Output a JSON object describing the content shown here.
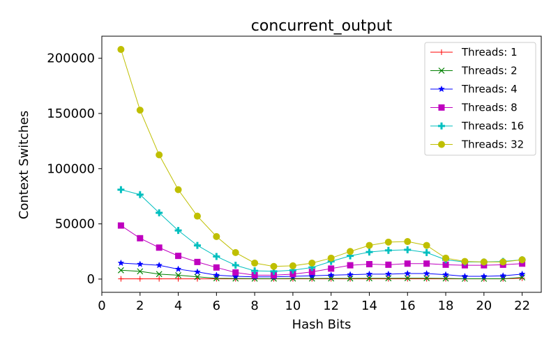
{
  "chart_data": {
    "type": "line",
    "title": "concurrent_output",
    "xlabel": "Hash Bits",
    "ylabel": "Context Switches",
    "xlim": [
      0,
      23
    ],
    "ylim": [
      -12000,
      220000
    ],
    "xticks": [
      0,
      2,
      4,
      6,
      8,
      10,
      12,
      14,
      16,
      18,
      20,
      22
    ],
    "yticks": [
      0,
      50000,
      100000,
      150000,
      200000
    ],
    "legend_position": "top-right",
    "grid": false,
    "x": [
      1,
      2,
      3,
      4,
      5,
      6,
      7,
      8,
      9,
      10,
      11,
      12,
      13,
      14,
      15,
      16,
      17,
      18,
      19,
      20,
      21,
      22
    ],
    "series": [
      {
        "name": "Threads: 1",
        "color": "#ff0000",
        "marker": "plus-thin",
        "values": [
          200,
          200,
          200,
          200,
          200,
          200,
          200,
          200,
          200,
          200,
          200,
          200,
          200,
          200,
          200,
          200,
          200,
          200,
          200,
          200,
          200,
          800
        ]
      },
      {
        "name": "Threads: 2",
        "color": "#008000",
        "marker": "x",
        "values": [
          8000,
          7000,
          4500,
          3500,
          2000,
          700,
          500,
          400,
          400,
          500,
          500,
          600,
          600,
          700,
          700,
          800,
          800,
          600,
          300,
          300,
          300,
          1500
        ]
      },
      {
        "name": "Threads: 4",
        "color": "#0000ff",
        "marker": "star",
        "values": [
          14500,
          13500,
          12500,
          9000,
          6500,
          3500,
          2500,
          2000,
          2000,
          2500,
          3000,
          3500,
          4000,
          4500,
          4500,
          5000,
          5000,
          4000,
          2500,
          2500,
          3000,
          4500
        ]
      },
      {
        "name": "Threads: 8",
        "color": "#bf00bf",
        "marker": "square",
        "values": [
          48500,
          37000,
          28500,
          21000,
          15500,
          10500,
          6000,
          3500,
          3500,
          4500,
          6500,
          9500,
          12500,
          13500,
          13000,
          14000,
          14000,
          13000,
          12500,
          12500,
          13000,
          14000
        ]
      },
      {
        "name": "Threads: 16",
        "color": "#00bfbf",
        "marker": "plus-thick",
        "values": [
          81000,
          76500,
          60000,
          44000,
          30500,
          20500,
          12500,
          7500,
          7000,
          8000,
          10500,
          16000,
          21000,
          24500,
          26000,
          26500,
          24000,
          17500,
          15500,
          15500,
          16000,
          17500
        ]
      },
      {
        "name": "Threads: 32",
        "color": "#bfbf00",
        "marker": "circle",
        "values": [
          208000,
          153000,
          112500,
          81000,
          57000,
          38500,
          24000,
          14500,
          11500,
          12000,
          14500,
          19000,
          25000,
          30500,
          33500,
          34000,
          30500,
          19000,
          16000,
          15500,
          15500,
          17500
        ]
      }
    ]
  }
}
